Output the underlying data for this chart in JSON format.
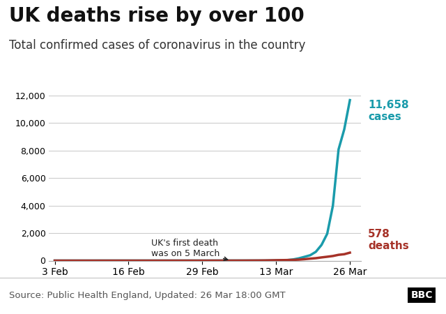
{
  "title": "UK deaths rise by over 100",
  "subtitle": "Total confirmed cases of coronavirus in the country",
  "source_text": "Source: Public Health England, Updated: 26 Mar 18:00 GMT",
  "cases_label": "11,658\ncases",
  "deaths_label": "578\ndeaths",
  "annotation_text": "UK's first death\nwas on 5 March",
  "cases_color": "#1a9bab",
  "deaths_color": "#a63228",
  "annotation_color": "#222222",
  "title_fontsize": 20,
  "subtitle_fontsize": 12,
  "source_fontsize": 9.5,
  "ylim": [
    0,
    13000
  ],
  "yticks": [
    0,
    2000,
    4000,
    6000,
    8000,
    10000,
    12000
  ],
  "xtick_labels": [
    "3 Feb",
    "16 Feb",
    "29 Feb",
    "13 Mar",
    "26 Mar"
  ],
  "xtick_positions": [
    0,
    13,
    26,
    39,
    52
  ],
  "background_color": "#ffffff",
  "grid_color": "#cccccc",
  "cases_data_x": [
    0,
    1,
    2,
    3,
    4,
    5,
    6,
    7,
    8,
    9,
    10,
    11,
    12,
    13,
    14,
    15,
    16,
    17,
    18,
    19,
    20,
    21,
    22,
    23,
    24,
    25,
    26,
    27,
    28,
    29,
    30,
    31,
    32,
    33,
    34,
    35,
    36,
    37,
    38,
    39,
    40,
    41,
    42,
    43,
    44,
    45,
    46,
    47,
    48,
    49,
    50,
    51,
    52
  ],
  "cases_data_y": [
    2,
    2,
    2,
    2,
    2,
    2,
    2,
    2,
    3,
    3,
    3,
    3,
    3,
    3,
    3,
    3,
    3,
    3,
    3,
    3,
    3,
    3,
    3,
    3,
    3,
    4,
    4,
    4,
    4,
    4,
    4,
    4,
    4,
    4,
    4,
    4,
    4,
    4,
    9,
    13,
    23,
    40,
    85,
    165,
    275,
    390,
    640,
    1140,
    1950,
    3983,
    8077,
    9529,
    11658
  ],
  "deaths_data_x": [
    0,
    1,
    2,
    3,
    4,
    5,
    6,
    7,
    8,
    9,
    10,
    11,
    12,
    13,
    14,
    15,
    16,
    17,
    18,
    19,
    20,
    21,
    22,
    23,
    24,
    25,
    26,
    27,
    28,
    29,
    30,
    31,
    32,
    33,
    34,
    35,
    36,
    37,
    38,
    39,
    40,
    41,
    42,
    43,
    44,
    45,
    46,
    47,
    48,
    49,
    50,
    51,
    52
  ],
  "deaths_data_y": [
    0,
    0,
    0,
    0,
    0,
    0,
    0,
    0,
    0,
    0,
    0,
    0,
    0,
    0,
    0,
    0,
    0,
    0,
    0,
    0,
    0,
    0,
    0,
    0,
    0,
    0,
    0,
    0,
    1,
    1,
    2,
    2,
    3,
    4,
    6,
    8,
    10,
    14,
    21,
    30,
    36,
    43,
    55,
    72,
    104,
    144,
    177,
    233,
    282,
    335,
    422,
    465,
    578
  ]
}
